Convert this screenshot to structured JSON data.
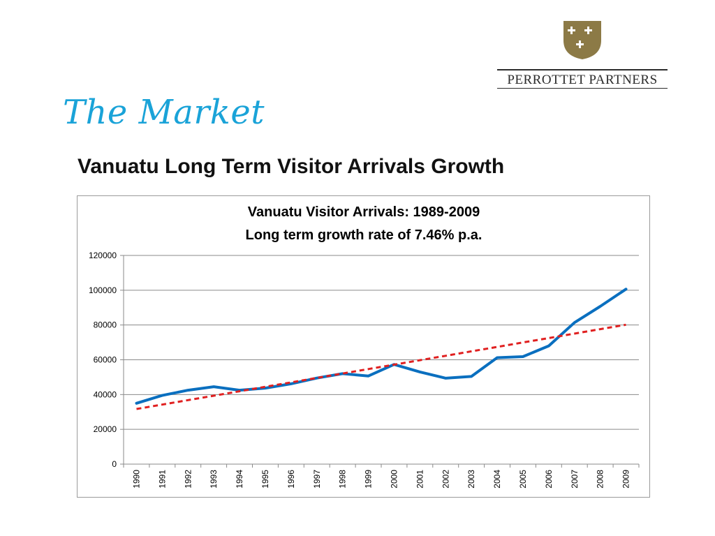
{
  "slide": {
    "title": "The Market",
    "subtitle": "Vanuatu Long Term Visitor Arrivals Growth"
  },
  "logo": {
    "name": "PERROTTET PARTNERS",
    "shield_color": "#8c7a46"
  },
  "chart_data": {
    "type": "line",
    "title": "Vanuatu Visitor Arrivals: 1989-2009",
    "subtitle": "Long term growth rate of 7.46% p.a.",
    "xlabel": "",
    "ylabel": "",
    "categories": [
      "1990",
      "1991",
      "1992",
      "1993",
      "1994",
      "1995",
      "1996",
      "1997",
      "1998",
      "1999",
      "2000",
      "2001",
      "2002",
      "2003",
      "2004",
      "2005",
      "2006",
      "2007",
      "2008",
      "2009"
    ],
    "ylim": [
      0,
      120000
    ],
    "yticks": [
      "0",
      "20000",
      "40000",
      "60000",
      "80000",
      "100000",
      "120000"
    ],
    "grid": true,
    "legend": "none",
    "series": [
      {
        "color": "#0a6fbf",
        "style": "solid",
        "values": [
          35000,
          39500,
          42500,
          44500,
          42500,
          43700,
          46200,
          49500,
          52000,
          50700,
          57300,
          53000,
          49400,
          50400,
          61200,
          61800,
          68000,
          81400,
          90700,
          100600
        ]
      },
      {
        "color": "#e02020",
        "style": "dashed",
        "values": [
          31700,
          34250,
          36800,
          39350,
          41900,
          44450,
          47000,
          49550,
          52100,
          54650,
          57200,
          59750,
          62300,
          64850,
          67400,
          69950,
          72500,
          75050,
          77600,
          80150
        ]
      }
    ]
  }
}
